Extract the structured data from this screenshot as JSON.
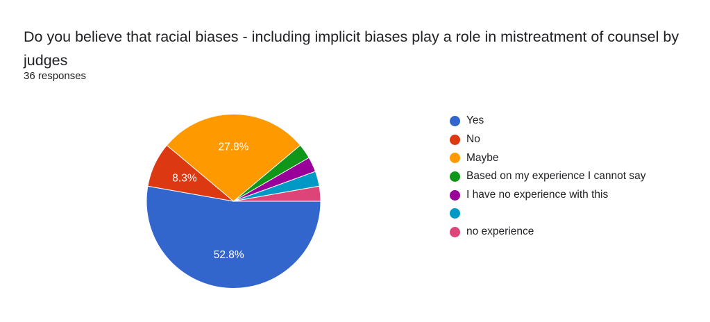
{
  "header": {
    "title": "Do you believe that racial biases - including implicit biases play a role in mistreatment of counsel by judges",
    "responses": "36 responses"
  },
  "chart_data": {
    "type": "pie",
    "total": 36,
    "start_angle_deg": 0,
    "direction": "clockwise",
    "legend_position": "right",
    "slices": [
      {
        "label": "Yes",
        "value": 19,
        "percent_label": "52.8%",
        "color": "#3366cc"
      },
      {
        "label": "No",
        "value": 3,
        "percent_label": "8.3%",
        "color": "#dc3912"
      },
      {
        "label": "Maybe",
        "value": 10,
        "percent_label": "27.8%",
        "color": "#ff9900"
      },
      {
        "label": "Based on my experience I cannot say",
        "value": 1,
        "percent_label": "",
        "color": "#109618"
      },
      {
        "label": "I have no experience with this",
        "value": 1,
        "percent_label": "",
        "color": "#990099"
      },
      {
        "label": "",
        "value": 1,
        "percent_label": "",
        "color": "#0099c6"
      },
      {
        "label": "no experience",
        "value": 1,
        "percent_label": "",
        "color": "#dd4477"
      }
    ]
  }
}
